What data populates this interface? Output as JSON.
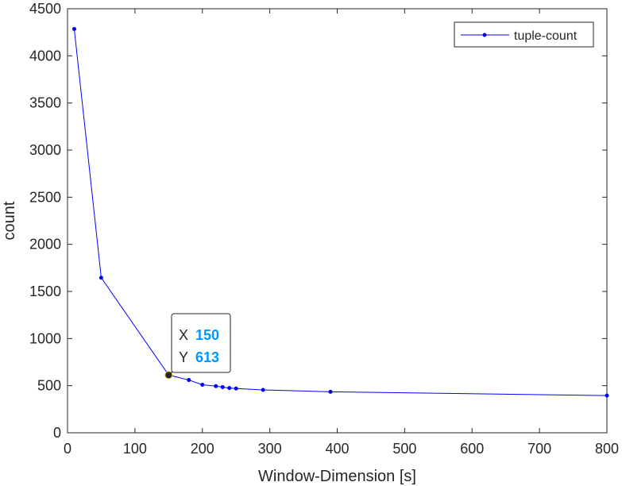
{
  "chart_data": {
    "type": "line",
    "title": "",
    "xlabel": "Window-Dimension [s]",
    "ylabel": "count",
    "xlim": [
      0,
      800
    ],
    "ylim": [
      0,
      4500
    ],
    "xticks": [
      0,
      100,
      200,
      300,
      400,
      500,
      600,
      700,
      800
    ],
    "yticks": [
      0,
      500,
      1000,
      1500,
      2000,
      2500,
      3000,
      3500,
      4000,
      4500
    ],
    "grid": false,
    "legend_position": "top-right",
    "series": [
      {
        "name": "tuple-count",
        "color": "#0000ff",
        "marker": "dot",
        "x": [
          10,
          50,
          150,
          180,
          200,
          220,
          230,
          240,
          250,
          290,
          390,
          800
        ],
        "y": [
          4285,
          1645,
          613,
          560,
          510,
          495,
          485,
          475,
          470,
          455,
          435,
          395
        ]
      }
    ],
    "datatip": {
      "x_label": "X",
      "x_value": "150",
      "y_label": "Y",
      "y_value": "613",
      "value_color": "#0096ff"
    }
  }
}
